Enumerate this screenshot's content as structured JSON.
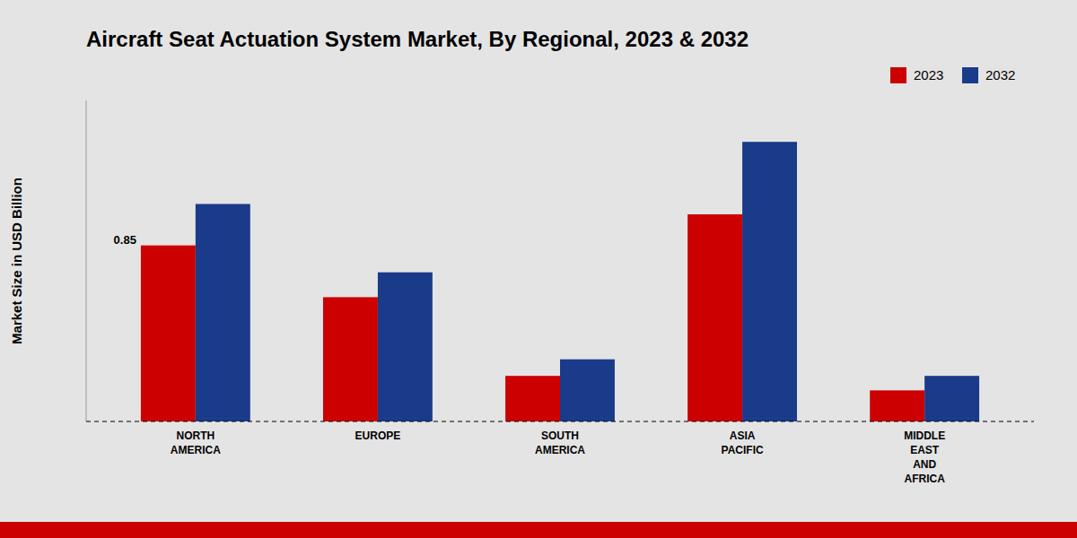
{
  "chart_data": {
    "type": "bar",
    "title": "Aircraft Seat Actuation System Market, By Regional, 2023 & 2032",
    "y_label": "Market Size in USD Billion",
    "categories": [
      "NORTH\nAMERICA",
      "EUROPE",
      "SOUTH\nAMERICA",
      "ASIA\nPACIFIC",
      "MIDDLE\nEAST\nAND\nAFRICA"
    ],
    "series": [
      {
        "name": "2023",
        "color": "#cc0000",
        "values": [
          0.85,
          0.6,
          0.22,
          1.0,
          0.15
        ]
      },
      {
        "name": "2032",
        "color": "#1a3a8a",
        "values": [
          1.05,
          0.72,
          0.3,
          1.35,
          0.22
        ]
      }
    ],
    "annotations": [
      {
        "text": "0.85",
        "series": "2023",
        "category": "NORTH\nAMERICA"
      }
    ],
    "ylim": [
      0,
      1.55
    ],
    "yticks": [],
    "tick_labels": "x",
    "grid": false,
    "legend": "upper right"
  }
}
